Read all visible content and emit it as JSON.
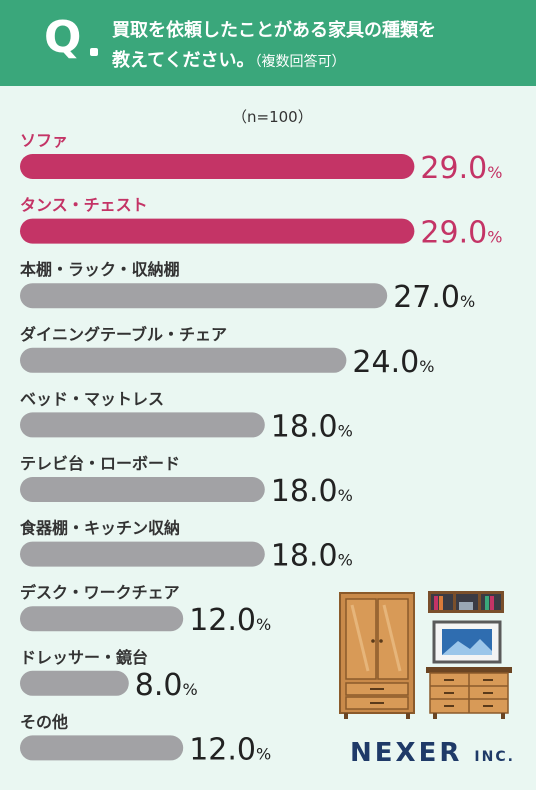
{
  "question": {
    "mark": "Q",
    "line1": "買取を依頼したことがある家具の種類を",
    "line2": "教えてください。",
    "line2_note": "（複数回答可）"
  },
  "sample_note": "（n=100）",
  "logo": {
    "name": "NEXER",
    "suffix": "INC."
  },
  "colors": {
    "header": "#3aa77b",
    "background": "#eaf7f2",
    "highlight": "#c43466",
    "bar": "#a2a2a5",
    "logo": "#1f3a68"
  },
  "chart_data": {
    "type": "bar",
    "orientation": "horizontal",
    "unit": "%",
    "categories": [
      "ソファ",
      "タンス・チェスト",
      "本棚・ラック・収納棚",
      "ダイニングテーブル・チェア",
      "ベッド・マットレス",
      "テレビ台・ローボード",
      "食器棚・キッチン収納",
      "デスク・ワークチェア",
      "ドレッサー・鏡台",
      "その他"
    ],
    "values": [
      29.0,
      29.0,
      27.0,
      24.0,
      18.0,
      18.0,
      18.0,
      12.0,
      8.0,
      12.0
    ],
    "labels": [
      "29.0",
      "29.0",
      "27.0",
      "24.0",
      "18.0",
      "18.0",
      "18.0",
      "12.0",
      "8.0",
      "12.0"
    ],
    "highlighted": [
      true,
      true,
      false,
      false,
      false,
      false,
      false,
      false,
      false,
      false
    ]
  }
}
